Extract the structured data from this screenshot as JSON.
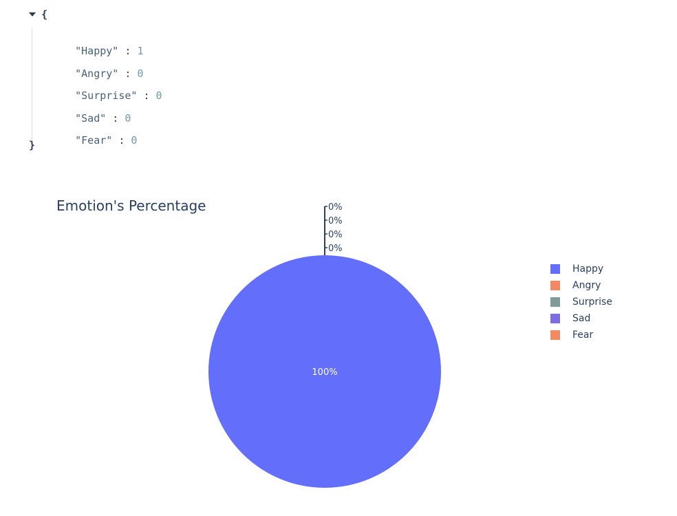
{
  "json_viewer": {
    "open_brace": "{",
    "close_brace": "}",
    "entries": [
      {
        "key": "\"Happy\"",
        "value": "1"
      },
      {
        "key": "\"Angry\"",
        "value": "0"
      },
      {
        "key": "\"Surprise\"",
        "value": "0"
      },
      {
        "key": "\"Sad\"",
        "value": "0"
      },
      {
        "key": "\"Fear\"",
        "value": "0"
      }
    ]
  },
  "chart_data": {
    "type": "pie",
    "title": "Emotion's Percentage",
    "labels": [
      "Happy",
      "Angry",
      "Surprise",
      "Sad",
      "Fear"
    ],
    "values": [
      1,
      0,
      0,
      0,
      0
    ],
    "text_labels": [
      "100%",
      "0%",
      "0%",
      "0%",
      "0%"
    ],
    "colors": [
      "#636efa",
      "#EF8A62",
      "#7F9C98",
      "#7B6FE0",
      "#EF8A62"
    ],
    "legend_placement": "right",
    "sort": "none"
  }
}
